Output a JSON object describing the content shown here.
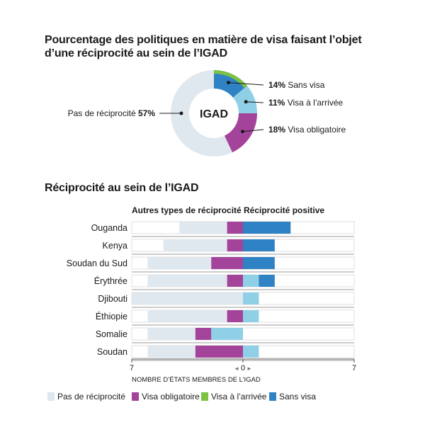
{
  "colors": {
    "none": "#dfe8ef",
    "obligatory": "#a3449a",
    "arrival": "#8fd0e6",
    "free": "#2f82c4",
    "free_light": "#7dc242"
  },
  "title1": "Pourcentage des politiques en matière de visa faisant l’objet d’une réciprocité au sein de l’IGAD",
  "title2": "Réciprocité au sein de l’IGAD",
  "chart_data": [
    {
      "type": "pie",
      "center_label": "IGAD",
      "slices": [
        {
          "key": "free",
          "pct_label": "14%",
          "label": "Sans visa",
          "value": 14
        },
        {
          "key": "arrival",
          "pct_label": "11%",
          "label": "Visa à l’arrivée",
          "value": 11
        },
        {
          "key": "obligatory",
          "pct_label": "18%",
          "label": "Visa obligatoire",
          "value": 18
        },
        {
          "key": "none",
          "pct_label": "57%",
          "label": "Pas de réciprocité",
          "value": 57
        }
      ],
      "free_light_share": 4
    },
    {
      "type": "bar",
      "left_header": "Autres types de réciprocité",
      "right_header": "Réciprocité positive",
      "axis_label": "NOMBRE D’ÉTATS MEMBRES DE L’IGAD",
      "xlim": [
        -7,
        7
      ],
      "tick_labels": [
        "7",
        "0",
        "7"
      ],
      "categories": [
        "Ouganda",
        "Kenya",
        "Soudan du Sud",
        "Érythrée",
        "Djibouti",
        "Éthiopie",
        "Somalie",
        "Soudan"
      ],
      "series": [
        {
          "key": "none",
          "values": [
            3,
            4,
            4,
            5,
            7,
            5,
            3,
            3
          ]
        },
        {
          "key": "obligatory",
          "values": [
            1,
            1,
            2,
            1,
            0,
            1,
            1,
            3
          ]
        },
        {
          "key": "arrival_left",
          "values": [
            0,
            0,
            0,
            0,
            0,
            0,
            2,
            0
          ]
        },
        {
          "key": "arrival",
          "values": [
            0,
            0,
            0,
            1,
            1,
            1,
            0,
            1
          ]
        },
        {
          "key": "free",
          "values": [
            3,
            2,
            2,
            1,
            0,
            0,
            0,
            0
          ]
        }
      ]
    }
  ],
  "legend": [
    {
      "key": "none",
      "label": "Pas de réciprocité"
    },
    {
      "key": "obligatory",
      "label": "Visa obligatoire"
    },
    {
      "key": "free_light",
      "label": "Visa à l’arrivée"
    },
    {
      "key": "free",
      "label": "Sans visa"
    }
  ]
}
